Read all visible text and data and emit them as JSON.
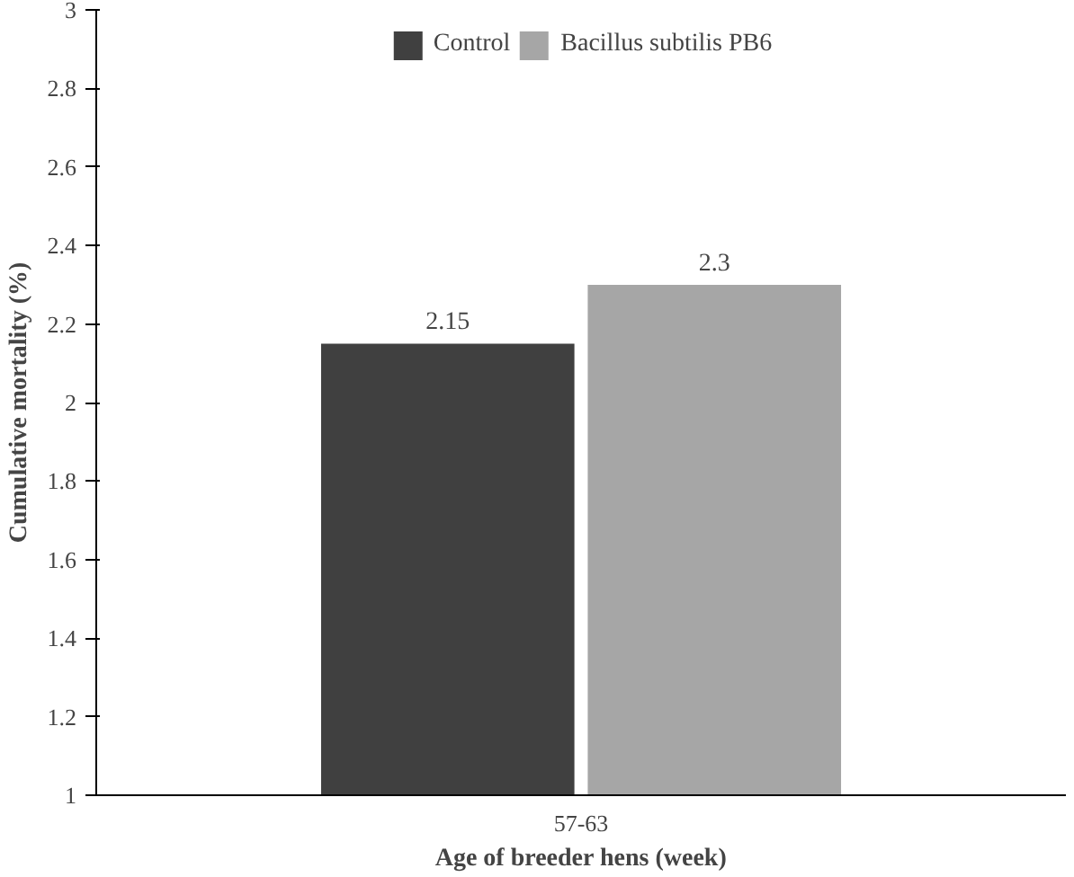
{
  "chart_data": {
    "type": "bar",
    "xlabel": "Age of breeder hens (week)",
    "ylabel": "Cumulative mortality (%)",
    "categories": [
      "57-63"
    ],
    "series": [
      {
        "name": "Control",
        "color": "#404040",
        "values": [
          2.15
        ]
      },
      {
        "name": "Bacillus subtilis PB6",
        "color": "#a6a6a6",
        "values": [
          2.3
        ]
      }
    ],
    "ylim": [
      1,
      3
    ],
    "yticks": [
      1,
      1.2,
      1.4,
      1.6,
      1.8,
      2,
      2.2,
      2.4,
      2.6,
      2.8,
      3
    ],
    "data_labels": true,
    "grid": false,
    "legend": "top"
  }
}
